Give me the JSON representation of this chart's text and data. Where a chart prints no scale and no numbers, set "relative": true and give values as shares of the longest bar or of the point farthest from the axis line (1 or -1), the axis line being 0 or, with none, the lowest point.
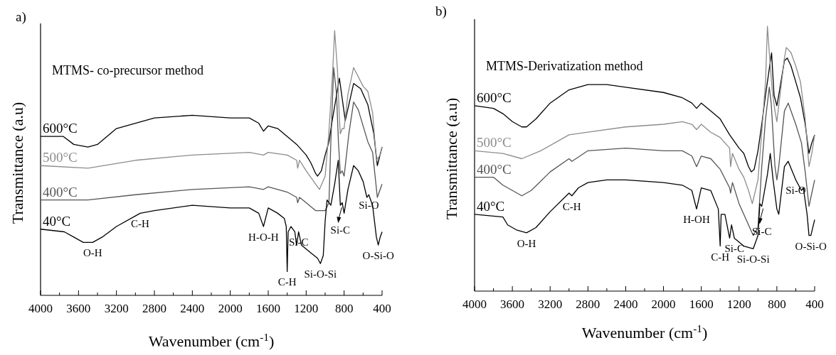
{
  "chart_data": [
    {
      "type": "line",
      "title": "a)",
      "subtitle": "MTMS- co-precursor method",
      "xlabel": "Wavenumber (cm$^{-1}$)",
      "ylabel": "Transmittance (a.u)",
      "relative": true,
      "line_style": "solid",
      "xlim": [
        4000,
        400
      ],
      "xticks": [
        4000,
        {
          "value": 3800,
          "label": null
        },
        3600,
        {
          "value": 3400,
          "label": null
        },
        3200,
        {
          "value": 3000,
          "label": null
        },
        2800,
        {
          "value": 2600,
          "label": null
        },
        2400,
        {
          "value": 2200,
          "label": null
        },
        2000,
        {
          "value": 1800,
          "label": null
        },
        1600,
        {
          "value": 1400,
          "label": null
        },
        1200,
        {
          "value": 1000,
          "label": null
        },
        800,
        {
          "value": 600,
          "label": null
        },
        400
      ],
      "series": [
        {
          "name": "600°C",
          "color": "#000000",
          "x": [
            4000,
            3760,
            3650,
            3500,
            3400,
            3200,
            3000,
            2800,
            2400,
            2000,
            1800,
            1700,
            1650,
            1600,
            1500,
            1400,
            1300,
            1200,
            1150,
            1100,
            1080,
            1040,
            1000,
            960,
            930,
            850,
            788,
            700,
            625,
            550,
            487,
            450,
            400
          ],
          "values": [
            0.6,
            0.6,
            0.57,
            0.56,
            0.57,
            0.63,
            0.65,
            0.67,
            0.68,
            0.67,
            0.67,
            0.65,
            0.62,
            0.64,
            0.63,
            0.6,
            0.57,
            0.53,
            0.5,
            0.46,
            0.45,
            0.47,
            0.53,
            0.58,
            0.65,
            0.82,
            0.66,
            0.8,
            0.78,
            0.72,
            0.61,
            0.49,
            0.56
          ]
        },
        {
          "name": "500°C",
          "color": "#8c8c8c",
          "x": [
            4000,
            3500,
            3000,
            2400,
            1800,
            1650,
            1600,
            1400,
            1300,
            1290,
            1270,
            1200,
            1100,
            1060,
            1000,
            960,
            920,
            900,
            870,
            850,
            840,
            820,
            800,
            760,
            700,
            600,
            550,
            500,
            460,
            420,
            400
          ],
          "values": [
            0.49,
            0.48,
            0.51,
            0.53,
            0.54,
            0.53,
            0.54,
            0.53,
            0.51,
            0.48,
            0.51,
            0.47,
            0.42,
            0.4,
            0.45,
            0.62,
            0.85,
            1.0,
            0.85,
            0.67,
            0.61,
            0.63,
            0.63,
            0.76,
            0.86,
            0.79,
            0.77,
            0.69,
            0.51,
            0.53,
            0.56
          ]
        },
        {
          "name": "400°C",
          "color": "#555555",
          "x": [
            4000,
            3500,
            3000,
            2400,
            1800,
            1650,
            1600,
            1400,
            1300,
            1290,
            1270,
            1200,
            1100,
            1000,
            960,
            940,
            910,
            880,
            860,
            840,
            820,
            800,
            750,
            700,
            650,
            550,
            500,
            450,
            400
          ],
          "values": [
            0.36,
            0.36,
            0.38,
            0.4,
            0.41,
            0.4,
            0.41,
            0.39,
            0.37,
            0.35,
            0.37,
            0.35,
            0.32,
            0.32,
            0.35,
            0.58,
            0.86,
            0.76,
            0.58,
            0.46,
            0.47,
            0.45,
            0.61,
            0.73,
            0.7,
            0.58,
            0.54,
            0.37,
            0.42
          ]
        },
        {
          "name": "40°C",
          "color": "#000000",
          "x": [
            4000,
            3750,
            3650,
            3550,
            3450,
            3350,
            3200,
            3000,
            2950,
            2800,
            2400,
            2000,
            1800,
            1700,
            1650,
            1600,
            1500,
            1430,
            1410,
            1400,
            1390,
            1360,
            1320,
            1300,
            1280,
            1250,
            1150,
            1080,
            1050,
            1020,
            1000,
            980,
            960,
            940,
            900,
            862,
            840,
            820,
            800,
            760,
            700,
            650,
            600,
            560,
            540,
            500,
            460,
            440,
            420,
            400
          ],
          "values": [
            0.25,
            0.24,
            0.22,
            0.2,
            0.2,
            0.22,
            0.26,
            0.3,
            0.31,
            0.32,
            0.34,
            0.33,
            0.33,
            0.31,
            0.26,
            0.33,
            0.31,
            0.29,
            0.26,
            0.09,
            0.24,
            0.26,
            0.24,
            0.19,
            0.24,
            0.19,
            0.16,
            0.14,
            0.12,
            0.15,
            0.28,
            0.36,
            0.35,
            0.34,
            0.42,
            0.51,
            0.34,
            0.35,
            0.31,
            0.4,
            0.49,
            0.47,
            0.43,
            0.37,
            0.38,
            0.34,
            0.22,
            0.19,
            0.22,
            0.24
          ]
        }
      ],
      "annotations": [
        {
          "text": "O-H",
          "x": 3450,
          "y": 0.2
        },
        {
          "text": "C-H",
          "x": 2950,
          "y": 0.31
        },
        {
          "text": "H-O-H",
          "x": 1650,
          "y": 0.26
        },
        {
          "text": "Si-C",
          "x": 1280,
          "y": 0.24
        },
        {
          "text": "C-H",
          "x": 1400,
          "y": 0.09
        },
        {
          "text": "Si-O-Si",
          "x": 1050,
          "y": 0.12
        },
        {
          "text": "Si-C",
          "x": 840,
          "y": 0.34
        },
        {
          "text": "Si-O",
          "x": 540,
          "y": 0.38
        },
        {
          "text": "O-Si-O",
          "x": 440,
          "y": 0.19
        }
      ]
    },
    {
      "type": "line",
      "title": "b)",
      "subtitle": "MTMS-Derivatization method",
      "xlabel": "Wavenumber (cm$^{-1}$)",
      "ylabel": "Transmittance (a.u)",
      "relative": true,
      "line_style": "solid",
      "xlim": [
        4000,
        400
      ],
      "xticks": [
        4000,
        {
          "value": 3800,
          "label": null
        },
        3600,
        {
          "value": 3400,
          "label": null
        },
        3200,
        {
          "value": 3000,
          "label": null
        },
        2800,
        {
          "value": 2600,
          "label": null
        },
        2400,
        {
          "value": 2200,
          "label": null
        },
        2000,
        {
          "value": 1800,
          "label": null
        },
        1600,
        {
          "value": 1400,
          "label": null
        },
        1200,
        {
          "value": 1000,
          "label": null
        },
        800,
        {
          "value": 600,
          "label": null
        },
        400
      ],
      "series": [
        {
          "name": "600°C",
          "color": "#000000",
          "x": [
            4000,
            3800,
            3700,
            3600,
            3500,
            3450,
            3350,
            3200,
            3000,
            2800,
            2600,
            2400,
            2000,
            1800,
            1700,
            1650,
            1600,
            1500,
            1400,
            1300,
            1200,
            1150,
            1100,
            1070,
            1040,
            1000,
            960,
            920,
            856,
            830,
            800,
            780,
            720,
            690,
            650,
            600,
            550,
            500,
            460,
            430,
            400
          ],
          "values": [
            0.7,
            0.69,
            0.67,
            0.64,
            0.62,
            0.62,
            0.65,
            0.71,
            0.76,
            0.78,
            0.78,
            0.77,
            0.75,
            0.73,
            0.71,
            0.69,
            0.71,
            0.68,
            0.65,
            0.59,
            0.54,
            0.52,
            0.47,
            0.45,
            0.46,
            0.53,
            0.63,
            0.74,
            0.9,
            0.74,
            0.7,
            0.74,
            0.87,
            0.88,
            0.85,
            0.79,
            0.73,
            0.63,
            0.52,
            0.56,
            0.59
          ]
        },
        {
          "name": "500°C",
          "color": "#8c8c8c",
          "x": [
            4000,
            3700,
            3500,
            3300,
            3000,
            2800,
            2400,
            2000,
            1800,
            1700,
            1650,
            1600,
            1500,
            1400,
            1300,
            1290,
            1270,
            1200,
            1150,
            1100,
            1060,
            1000,
            960,
            920,
            900,
            880,
            850,
            820,
            800,
            780,
            720,
            700,
            650,
            600,
            550,
            500,
            460,
            430,
            400
          ],
          "values": [
            0.53,
            0.52,
            0.5,
            0.53,
            0.59,
            0.6,
            0.62,
            0.63,
            0.64,
            0.63,
            0.61,
            0.63,
            0.6,
            0.58,
            0.54,
            0.47,
            0.52,
            0.46,
            0.43,
            0.38,
            0.33,
            0.42,
            0.6,
            0.79,
            1.0,
            0.9,
            0.76,
            0.68,
            0.64,
            0.7,
            0.88,
            0.92,
            0.9,
            0.85,
            0.79,
            0.65,
            0.47,
            0.52,
            0.59
          ]
        },
        {
          "name": "400°C",
          "color": "#555555",
          "x": [
            4000,
            3800,
            3700,
            3600,
            3500,
            3400,
            3200,
            3000,
            2970,
            2800,
            2400,
            2000,
            1800,
            1700,
            1650,
            1600,
            1500,
            1400,
            1300,
            1290,
            1270,
            1200,
            1100,
            1050,
            1000,
            960,
            920,
            880,
            860,
            820,
            800,
            780,
            720,
            680,
            600,
            540,
            500,
            460,
            430,
            400
          ],
          "values": [
            0.43,
            0.43,
            0.4,
            0.38,
            0.36,
            0.38,
            0.45,
            0.5,
            0.49,
            0.53,
            0.54,
            0.53,
            0.53,
            0.51,
            0.47,
            0.51,
            0.5,
            0.46,
            0.39,
            0.37,
            0.41,
            0.33,
            0.25,
            0.21,
            0.24,
            0.47,
            0.65,
            0.77,
            0.71,
            0.47,
            0.42,
            0.47,
            0.68,
            0.71,
            0.63,
            0.56,
            0.45,
            0.32,
            0.37,
            0.42
          ]
        },
        {
          "name": "40°C",
          "color": "#000000",
          "x": [
            4000,
            3700,
            3650,
            3550,
            3450,
            3350,
            3200,
            3000,
            2970,
            2900,
            2800,
            2600,
            2400,
            2000,
            1800,
            1700,
            1650,
            1600,
            1500,
            1420,
            1400,
            1390,
            1350,
            1300,
            1280,
            1250,
            1150,
            1050,
            1000,
            980,
            960,
            900,
            870,
            840,
            800,
            780,
            720,
            680,
            600,
            540,
            520,
            480,
            460,
            440,
            400
          ],
          "values": [
            0.29,
            0.28,
            0.25,
            0.23,
            0.22,
            0.24,
            0.3,
            0.37,
            0.36,
            0.39,
            0.41,
            0.42,
            0.42,
            0.41,
            0.4,
            0.38,
            0.31,
            0.39,
            0.38,
            0.31,
            0.17,
            0.29,
            0.29,
            0.2,
            0.25,
            0.2,
            0.17,
            0.16,
            0.21,
            0.33,
            0.32,
            0.44,
            0.52,
            0.42,
            0.31,
            0.29,
            0.47,
            0.49,
            0.42,
            0.38,
            0.39,
            0.29,
            0.21,
            0.21,
            0.27
          ]
        }
      ],
      "annotations": [
        {
          "text": "O-H",
          "x": 3450,
          "y": 0.22
        },
        {
          "text": "C-H",
          "x": 2970,
          "y": 0.36
        },
        {
          "text": "H-OH",
          "x": 1650,
          "y": 0.31
        },
        {
          "text": "Si-C",
          "x": 1250,
          "y": 0.2
        },
        {
          "text": "C-H",
          "x": 1400,
          "y": 0.17
        },
        {
          "text": "Si-O-Si",
          "x": 1050,
          "y": 0.16
        },
        {
          "text": "Si-C",
          "x": 960,
          "y": 0.32
        },
        {
          "text": "Si-O",
          "x": 600,
          "y": 0.42
        },
        {
          "text": "O-Si-O",
          "x": 440,
          "y": 0.21
        }
      ]
    }
  ]
}
